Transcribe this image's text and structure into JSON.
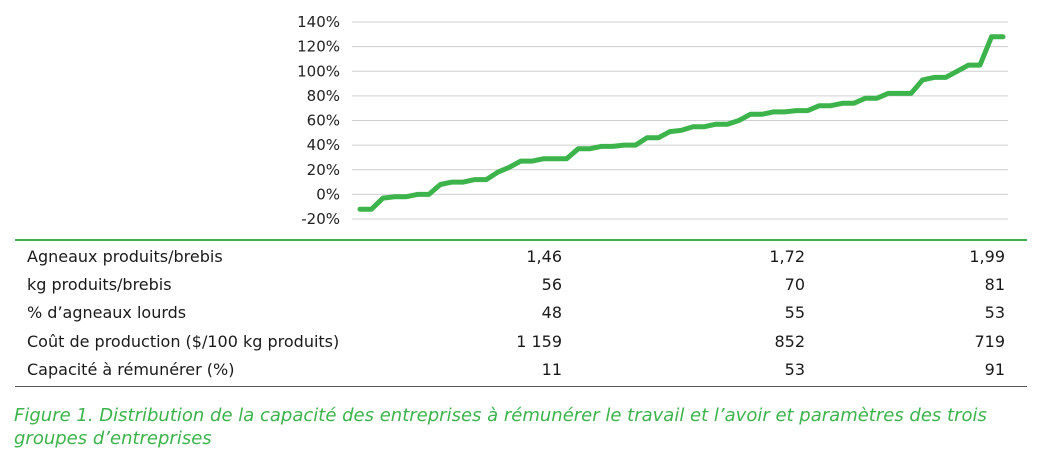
{
  "chart_data": {
    "type": "line",
    "y_ticks": [
      "140%",
      "120%",
      "100%",
      "80%",
      "60%",
      "40%",
      "20%",
      "0%",
      "-20%"
    ],
    "ylim": [
      -20,
      140
    ],
    "grid": true,
    "series": [
      {
        "color": "#3cb44b",
        "values": [
          -12,
          -12,
          -3,
          -2,
          -2,
          0,
          0,
          8,
          10,
          10,
          12,
          12,
          18,
          22,
          27,
          27,
          29,
          29,
          29,
          37,
          37,
          39,
          39,
          40,
          40,
          46,
          46,
          51,
          52,
          55,
          55,
          57,
          57,
          60,
          65,
          65,
          67,
          67,
          68,
          68,
          72,
          72,
          74,
          74,
          78,
          78,
          82,
          82,
          82,
          93,
          95,
          95,
          100,
          105,
          105,
          128,
          128
        ]
      }
    ]
  },
  "table": {
    "rows": [
      {
        "label": "Agneaux produits/brebis",
        "values": [
          "1,46",
          "1,72",
          "1,99"
        ]
      },
      {
        "label": "kg produits/brebis",
        "values": [
          "56",
          "70",
          "81"
        ]
      },
      {
        "label": "% d’agneaux lourds",
        "values": [
          "48",
          "55",
          "53"
        ]
      },
      {
        "label": "Coût de production ($/100 kg produits)",
        "values": [
          "1 159",
          "852",
          "719"
        ]
      },
      {
        "label": "Capacité à rémunérer (%)",
        "values": [
          "11",
          "53",
          "91"
        ]
      }
    ]
  },
  "caption": "Figure 1. Distribution de la capacité des entreprises à rémunérer le travail et l’avoir et paramètres des trois groupes d’entreprises"
}
